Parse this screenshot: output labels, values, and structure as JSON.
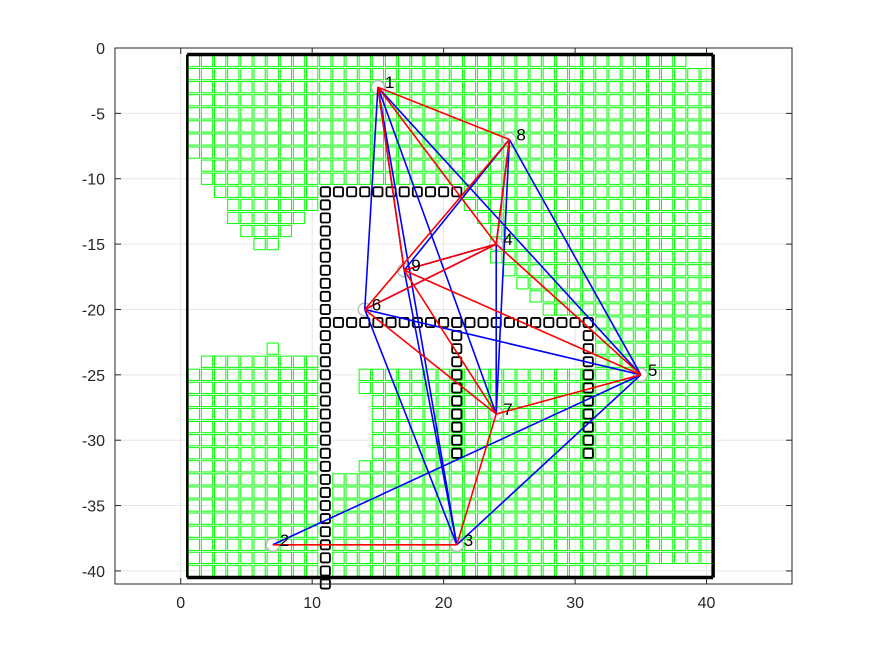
{
  "chart_data": {
    "type": "network-map",
    "title": "",
    "xlabel": "",
    "ylabel": "",
    "xlim": [
      -5,
      46.5
    ],
    "ylim": [
      -41,
      0
    ],
    "xticks": [
      0,
      10,
      20,
      30,
      40
    ],
    "yticks": [
      0,
      -5,
      -10,
      -15,
      -20,
      -25,
      -30,
      -35,
      -40
    ],
    "xtick_labels": [
      "0",
      "10",
      "20",
      "30",
      "40"
    ],
    "ytick_labels": [
      "0",
      "-5",
      "-10",
      "-15",
      "-20",
      "-25",
      "-30",
      "-35",
      "-40"
    ],
    "grid": true,
    "boundary": {
      "x": [
        0.5,
        40.5
      ],
      "y": [
        -40.5,
        -0.5
      ],
      "color": "#000000"
    },
    "free_cells": {
      "color": "#00ff00",
      "cell_size": 1,
      "comment_rows": "each row: y value and inclusive x-ranges of free cell centers",
      "rows": [
        {
          "y": -1,
          "ranges": [
            [
              1,
              38
            ]
          ]
        },
        {
          "y": -2,
          "ranges": [
            [
              1,
              40
            ]
          ]
        },
        {
          "y": -3,
          "ranges": [
            [
              1,
              40
            ]
          ]
        },
        {
          "y": -4,
          "ranges": [
            [
              1,
              40
            ]
          ]
        },
        {
          "y": -5,
          "ranges": [
            [
              1,
              40
            ]
          ]
        },
        {
          "y": -6,
          "ranges": [
            [
              1,
              40
            ]
          ]
        },
        {
          "y": -7,
          "ranges": [
            [
              1,
              40
            ]
          ]
        },
        {
          "y": -8,
          "ranges": [
            [
              1,
              40
            ]
          ]
        },
        {
          "y": -9,
          "ranges": [
            [
              2,
              40
            ]
          ]
        },
        {
          "y": -10,
          "ranges": [
            [
              2,
              40
            ]
          ]
        },
        {
          "y": -11,
          "ranges": [
            [
              3,
              10
            ],
            [
              22,
              40
            ]
          ]
        },
        {
          "y": -12,
          "ranges": [
            [
              4,
              10
            ],
            [
              22,
              40
            ]
          ]
        },
        {
          "y": -13,
          "ranges": [
            [
              4,
              9
            ],
            [
              23,
              40
            ]
          ]
        },
        {
          "y": -14,
          "ranges": [
            [
              5,
              8
            ],
            [
              24,
              40
            ]
          ]
        },
        {
          "y": -15,
          "ranges": [
            [
              6,
              7
            ],
            [
              24,
              40
            ]
          ]
        },
        {
          "y": -16,
          "ranges": [
            [
              24,
              40
            ]
          ]
        },
        {
          "y": -17,
          "ranges": [
            [
              25,
              40
            ]
          ]
        },
        {
          "y": -18,
          "ranges": [
            [
              26,
              40
            ]
          ]
        },
        {
          "y": -19,
          "ranges": [
            [
              27,
              40
            ]
          ]
        },
        {
          "y": -20,
          "ranges": [
            [
              28,
              40
            ]
          ]
        },
        {
          "y": -21,
          "ranges": [
            [
              32,
              40
            ]
          ]
        },
        {
          "y": -22,
          "ranges": [
            [
              32,
              40
            ]
          ]
        },
        {
          "y": -23,
          "ranges": [
            [
              7,
              7
            ],
            [
              32,
              40
            ]
          ]
        },
        {
          "y": -24,
          "ranges": [
            [
              2,
              10
            ],
            [
              32,
              40
            ]
          ]
        },
        {
          "y": -25,
          "ranges": [
            [
              1,
              10
            ],
            [
              14,
              40
            ]
          ]
        },
        {
          "y": -26,
          "ranges": [
            [
              1,
              10
            ],
            [
              14,
              40
            ]
          ]
        },
        {
          "y": -27,
          "ranges": [
            [
              1,
              10
            ],
            [
              15,
              40
            ]
          ]
        },
        {
          "y": -28,
          "ranges": [
            [
              1,
              10
            ],
            [
              15,
              40
            ]
          ]
        },
        {
          "y": -29,
          "ranges": [
            [
              1,
              10
            ],
            [
              15,
              40
            ]
          ]
        },
        {
          "y": -30,
          "ranges": [
            [
              1,
              10
            ],
            [
              15,
              40
            ]
          ]
        },
        {
          "y": -31,
          "ranges": [
            [
              1,
              10
            ],
            [
              15,
              40
            ]
          ]
        },
        {
          "y": -32,
          "ranges": [
            [
              1,
              10
            ],
            [
              14,
              40
            ]
          ]
        },
        {
          "y": -33,
          "ranges": [
            [
              1,
              10
            ],
            [
              12,
              40
            ]
          ]
        },
        {
          "y": -34,
          "ranges": [
            [
              1,
              10
            ],
            [
              12,
              40
            ]
          ]
        },
        {
          "y": -35,
          "ranges": [
            [
              1,
              10
            ],
            [
              12,
              40
            ]
          ]
        },
        {
          "y": -36,
          "ranges": [
            [
              1,
              10
            ],
            [
              12,
              40
            ]
          ]
        },
        {
          "y": -37,
          "ranges": [
            [
              1,
              10
            ],
            [
              12,
              40
            ]
          ]
        },
        {
          "y": -38,
          "ranges": [
            [
              1,
              10
            ],
            [
              12,
              40
            ]
          ]
        },
        {
          "y": -39,
          "ranges": [
            [
              1,
              10
            ],
            [
              12,
              40
            ]
          ]
        },
        {
          "y": -40,
          "ranges": [
            [
              1,
              10
            ],
            [
              12,
              35
            ]
          ]
        }
      ]
    },
    "obstacles": {
      "color": "#000000",
      "cell_size": 0.7,
      "segments": [
        {
          "axis": "x",
          "y": -11,
          "from": 11,
          "to": 21
        },
        {
          "axis": "y",
          "x": 11,
          "from": -11,
          "to": -41
        },
        {
          "axis": "x",
          "y": -21,
          "from": 11,
          "to": 31
        },
        {
          "axis": "y",
          "x": 21,
          "from": -21,
          "to": -31
        },
        {
          "axis": "y",
          "x": 31,
          "from": -21,
          "to": -31
        }
      ]
    },
    "nodes": [
      {
        "id": "1",
        "x": 15,
        "y": -3
      },
      {
        "id": "2",
        "x": 7,
        "y": -38
      },
      {
        "id": "3",
        "x": 21,
        "y": -38
      },
      {
        "id": "4",
        "x": 24,
        "y": -15
      },
      {
        "id": "5",
        "x": 35,
        "y": -25
      },
      {
        "id": "6",
        "x": 14,
        "y": -20
      },
      {
        "id": "7",
        "x": 24,
        "y": -28
      },
      {
        "id": "8",
        "x": 25,
        "y": -7
      },
      {
        "id": "9",
        "x": 17,
        "y": -17
      }
    ],
    "node_marker_color": "#bfbfbf",
    "series": [
      {
        "color": "#0000ff",
        "edges": [
          [
            1,
            6
          ],
          [
            1,
            9
          ],
          [
            1,
            7
          ],
          [
            1,
            3
          ],
          [
            1,
            5
          ],
          [
            8,
            9
          ],
          [
            8,
            4
          ],
          [
            8,
            7
          ],
          [
            8,
            5
          ],
          [
            9,
            4
          ],
          [
            6,
            4
          ],
          [
            6,
            5
          ],
          [
            6,
            3
          ],
          [
            4,
            7
          ],
          [
            9,
            3
          ],
          [
            5,
            2
          ],
          [
            5,
            3
          ]
        ]
      },
      {
        "color": "#ff0000",
        "edges": [
          [
            1,
            8
          ],
          [
            1,
            9
          ],
          [
            1,
            4
          ],
          [
            8,
            6
          ],
          [
            8,
            4
          ],
          [
            9,
            4
          ],
          [
            9,
            5
          ],
          [
            9,
            7
          ],
          [
            6,
            4
          ],
          [
            6,
            7
          ],
          [
            4,
            5
          ],
          [
            5,
            7
          ],
          [
            7,
            3
          ],
          [
            2,
            3
          ]
        ]
      }
    ]
  }
}
